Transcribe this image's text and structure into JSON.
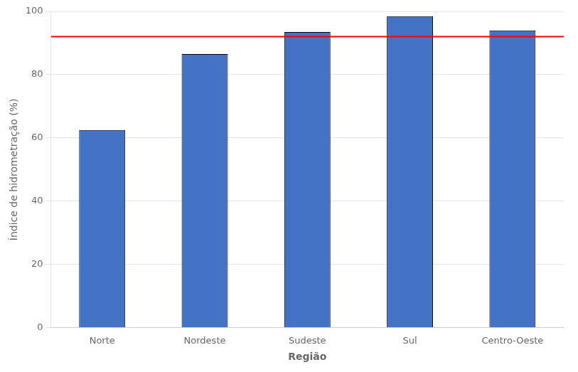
{
  "chart_data": {
    "type": "bar",
    "categories": [
      "Norte",
      "Nordeste",
      "Sudeste",
      "Sul",
      "Centro-Oeste"
    ],
    "values": [
      62.5,
      86.5,
      93.5,
      98.5,
      94.0
    ],
    "color": "#4472C4",
    "xlabel": "Região",
    "ylabel": "Índice de hidrometração (%)",
    "ylim": [
      0,
      100
    ],
    "yticks": [
      0,
      20,
      40,
      60,
      80,
      100
    ],
    "grid": true,
    "reference_line": 92.0,
    "reference_line_color": "#FF0000"
  }
}
